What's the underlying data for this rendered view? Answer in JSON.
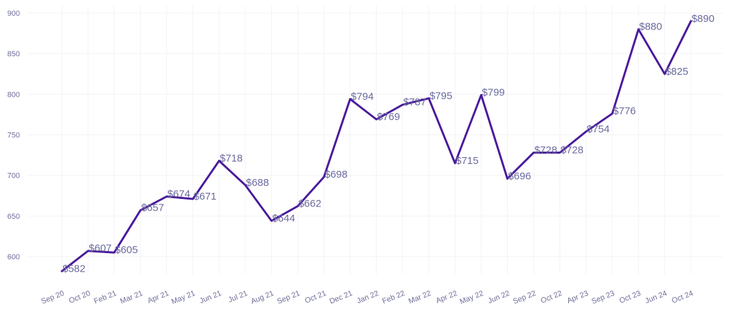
{
  "colors": {
    "line": "#4a1a9c",
    "labels": "#6a6a9e",
    "ticks": "#6e6e9a",
    "grid": "#f3f3f7",
    "background": "#ffffff"
  },
  "chart_data": {
    "type": "line",
    "title": "",
    "xlabel": "",
    "ylabel": "",
    "ylim": [
      565,
      905
    ],
    "yticks": [
      600,
      650,
      700,
      750,
      800,
      850,
      900
    ],
    "grid": true,
    "legend": "none",
    "x": [
      "Sep 20",
      "Oct 20",
      "Feb 21",
      "Mar 21",
      "Apr 21",
      "May 21",
      "Jun 21",
      "Jul 21",
      "Aug 21",
      "Sep 21",
      "Oct 21",
      "Dec 21",
      "Jan 22",
      "Feb 22",
      "Mar 22",
      "Apr 22",
      "May 22",
      "Jun 22",
      "Sep 22",
      "Oct 22",
      "Apr 23",
      "Sep 23",
      "Oct 23",
      "Jun 24",
      "Oct 24"
    ],
    "series": [
      {
        "values": [
          582,
          607,
          605,
          657,
          674,
          671,
          718,
          688,
          644,
          662,
          698,
          794,
          769,
          787,
          795,
          715,
          799,
          696,
          728,
          728,
          754,
          776,
          880,
          825,
          890
        ],
        "labels": [
          "$582",
          "$607",
          "$605",
          "$657",
          "$674",
          "$671",
          "$718",
          "$688",
          "$644",
          "$662",
          "$698",
          "$794",
          "$769",
          "$787",
          "$795",
          "$715",
          "$799",
          "$696",
          "$728",
          "$728",
          "$754",
          "$776",
          "$880",
          "$825",
          "$890"
        ]
      }
    ]
  }
}
